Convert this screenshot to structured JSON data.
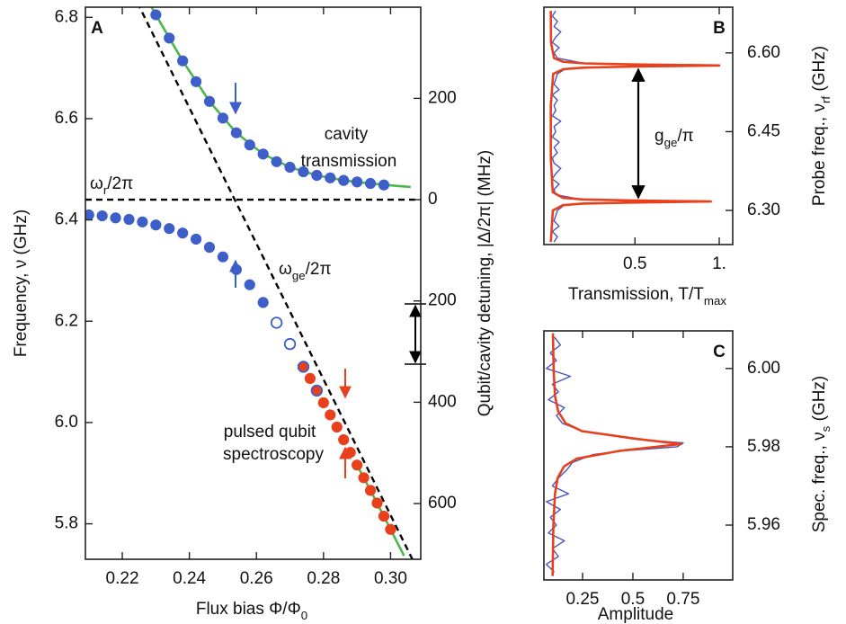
{
  "chart_data": [
    {
      "type": "scatter",
      "label": "A",
      "xlabel": [
        "Flux bias Φ/Φ",
        "0"
      ],
      "ylabel": "Frequency, ν (GHz)",
      "y2label": "Qubit/cavity detuning, |Δ/2π| (MHz)",
      "xlim": [
        0.209,
        0.309
      ],
      "ylim": [
        5.73,
        6.82
      ],
      "y2lim": [
        -710,
        380
      ],
      "xticks": [
        0.22,
        0.24,
        0.26,
        0.28,
        {
          "value": 0.3,
          "label": "0.30"
        }
      ],
      "yticks": [
        6.8,
        6.6,
        6.4,
        6.2,
        {
          "value": 6,
          "label": "6.0"
        },
        5.8
      ],
      "y2ticks": [
        200,
        0,
        {
          "value": -200,
          "label": "200"
        },
        {
          "value": -400,
          "label": "400"
        },
        {
          "value": -600,
          "label": "600"
        }
      ],
      "annotations": [
        {
          "text": "cavity",
          "color": "#3f5fc8"
        },
        {
          "text": "transmission",
          "color": "#3f5fc8"
        },
        {
          "text": [
            "ω",
            "r",
            "/2π"
          ],
          "color": "#111"
        },
        {
          "text": [
            "ω",
            "ge",
            "/2π"
          ],
          "color": "#111"
        },
        {
          "text": "pulsed qubit",
          "color": "#e8401c"
        },
        {
          "text": "spectroscopy",
          "color": "#e8401c"
        }
      ],
      "series": [
        {
          "style": "line",
          "color": "#4cb848",
          "x": [
            0.228,
            0.23,
            0.238,
            0.246,
            0.254,
            0.262,
            0.27,
            0.278,
            0.286,
            0.294,
            0.302,
            0.306
          ],
          "values": [
            6.829,
            6.805,
            6.714,
            6.634,
            6.572,
            6.53,
            6.504,
            6.488,
            6.478,
            6.472,
            6.467,
            6.465
          ]
        },
        {
          "style": "line",
          "color": "#4cb848",
          "x": [
            0.29,
            0.294,
            0.298,
            0.302,
            0.304
          ],
          "values": [
            5.916,
            5.866,
            5.815,
            5.763,
            5.737
          ]
        },
        {
          "style": "dashed",
          "color": "#000000",
          "x": [
            0.209,
            0.309
          ],
          "values": [
            6.44,
            6.44
          ]
        },
        {
          "style": "dashed",
          "color": "#000000",
          "x": [
            0.2245,
            0.3065
          ],
          "values": [
            6.829,
            5.73
          ]
        },
        {
          "style": "dots",
          "color": "#3f5fc8",
          "x": [
            0.23,
            0.234,
            0.238,
            0.242,
            0.246,
            0.25,
            0.254,
            0.258,
            0.262,
            0.266,
            0.27,
            0.274,
            0.278,
            0.282,
            0.286,
            0.29,
            0.294,
            0.298
          ],
          "values": [
            6.805,
            6.759,
            6.714,
            6.673,
            6.634,
            6.601,
            6.572,
            6.548,
            6.53,
            6.515,
            6.504,
            6.495,
            6.488,
            6.483,
            6.478,
            6.475,
            6.472,
            6.469
          ]
        },
        {
          "style": "dots",
          "color": "#3f5fc8",
          "x": [
            0.21,
            0.214,
            0.218,
            0.222,
            0.226,
            0.23,
            0.234,
            0.238,
            0.242,
            0.246,
            0.25,
            0.254,
            0.258,
            0.262
          ],
          "values": [
            6.41,
            6.408,
            6.404,
            6.401,
            6.396,
            6.39,
            6.383,
            6.374,
            6.362,
            6.346,
            6.327,
            6.302,
            6.272,
            6.237
          ]
        },
        {
          "style": "dots",
          "color": "#e8401c",
          "x": [
            0.274,
            0.276,
            0.278,
            0.28,
            0.282,
            0.284,
            0.286,
            0.288,
            0.29,
            0.292,
            0.294,
            0.296,
            0.298,
            0.3
          ],
          "values": [
            6.11,
            6.087,
            6.063,
            6.039,
            6.015,
            5.991,
            5.966,
            5.941,
            5.916,
            5.891,
            5.866,
            5.841,
            5.815,
            5.789
          ]
        },
        {
          "style": "open",
          "color": "#3f5fc8",
          "x": [
            0.266,
            0.27,
            0.274,
            0.278
          ],
          "values": [
            6.197,
            6.155,
            6.11,
            6.063
          ]
        }
      ]
    },
    {
      "type": "line",
      "label": "B",
      "y_axis_position": "right",
      "xlabel": [
        "Transmission, T/T",
        "max"
      ],
      "ylabel": [
        "Probe freq., ν",
        "rf",
        " (GHz)"
      ],
      "xlim": [
        -0.04,
        1.08
      ],
      "ylim": [
        6.235,
        6.687
      ],
      "xticks": [
        0.5,
        {
          "value": 1,
          "label": "1."
        }
      ],
      "yticks": [
        {
          "value": 6.6,
          "label": "6.60"
        },
        6.45,
        {
          "value": 6.3,
          "label": "6.30"
        }
      ],
      "annotations": [
        {
          "text": [
            "g",
            "ge",
            "/π"
          ],
          "color": "#111"
        }
      ],
      "series": [
        {
          "style": "line",
          "color": "#4a55c0",
          "y": [
            6.24,
            6.25,
            6.26,
            6.27,
            6.28,
            6.29,
            6.3,
            6.31,
            6.313,
            6.315,
            6.317,
            6.319,
            6.321,
            6.33,
            6.34,
            6.35,
            6.36,
            6.37,
            6.38,
            6.39,
            6.4,
            6.41,
            6.42,
            6.43,
            6.44,
            6.45,
            6.46,
            6.47,
            6.48,
            6.49,
            6.5,
            6.51,
            6.52,
            6.53,
            6.54,
            6.55,
            6.56,
            6.57,
            6.572,
            6.574,
            6.576,
            6.578,
            6.58,
            6.59,
            6.6,
            6.61,
            6.62,
            6.63,
            6.64,
            6.65,
            6.66,
            6.67,
            6.68
          ],
          "values": [
            0.02,
            0.04,
            0.01,
            0.05,
            0.02,
            0.03,
            0.04,
            0.08,
            0.2,
            0.45,
            0.92,
            0.5,
            0.18,
            0.03,
            0.02,
            0.05,
            0.01,
            0.03,
            0.06,
            0.02,
            0.01,
            0.04,
            0.02,
            0.05,
            0.01,
            0.03,
            0.02,
            0.06,
            0.01,
            0.03,
            0.02,
            0.04,
            0.01,
            0.05,
            0.02,
            0.03,
            0.04,
            0.09,
            0.22,
            0.48,
            0.97,
            0.52,
            0.2,
            0.04,
            0.02,
            0.05,
            0.01,
            0.03,
            0.06,
            0.02,
            0.04,
            0.01,
            0.03
          ]
        },
        {
          "style": "line",
          "color": "#e8401c",
          "y": [
            6.24,
            6.3,
            6.31,
            6.313,
            6.315,
            6.317,
            6.319,
            6.321,
            6.324,
            6.335,
            6.4,
            6.45,
            6.5,
            6.56,
            6.569,
            6.572,
            6.574,
            6.576,
            6.578,
            6.58,
            6.583,
            6.59,
            6.62,
            6.68
          ],
          "values": [
            0.001,
            0.013,
            0.072,
            0.19,
            0.475,
            0.95,
            0.475,
            0.19,
            0.072,
            0.012,
            0.001,
            0.001,
            0.001,
            0.015,
            0.075,
            0.2,
            0.5,
            1.0,
            0.5,
            0.2,
            0.075,
            0.02,
            0.002,
            0.001
          ]
        }
      ]
    },
    {
      "type": "line",
      "label": "C",
      "y_axis_position": "right",
      "xlabel": "Amplitude",
      "ylabel": [
        "Spec. freq., ν",
        "s",
        " (GHz)"
      ],
      "xlim": [
        0.058,
        0.996
      ],
      "ylim": [
        5.946,
        6.0096
      ],
      "xticks": [
        0.25,
        0.5,
        0.75
      ],
      "yticks": [
        {
          "value": 6,
          "label": "6.00"
        },
        5.98,
        5.96
      ],
      "annotations": [],
      "series": [
        {
          "style": "line",
          "color": "#4a55c0",
          "y": [
            5.948,
            5.95,
            5.952,
            5.954,
            5.956,
            5.958,
            5.96,
            5.962,
            5.964,
            5.966,
            5.968,
            5.97,
            5.972,
            5.974,
            5.976,
            5.978,
            5.979,
            5.98,
            5.981,
            5.982,
            5.984,
            5.986,
            5.988,
            5.99,
            5.992,
            5.994,
            5.996,
            5.998,
            6.0,
            6.002,
            6.004,
            6.006,
            6.008
          ],
          "values": [
            0.11,
            0.07,
            0.13,
            0.1,
            0.16,
            0.08,
            0.12,
            0.09,
            0.14,
            0.07,
            0.18,
            0.1,
            0.13,
            0.17,
            0.2,
            0.3,
            0.46,
            0.72,
            0.75,
            0.5,
            0.25,
            0.15,
            0.12,
            0.16,
            0.08,
            0.13,
            0.1,
            0.19,
            0.07,
            0.12,
            0.09,
            0.14,
            0.11
          ]
        },
        {
          "style": "line",
          "color": "#e8401c",
          "y": [
            5.947,
            5.95,
            5.96,
            5.968,
            5.972,
            5.975,
            5.977,
            5.979,
            5.9807,
            5.982,
            5.984,
            5.986,
            5.989,
            5.993,
            6.0,
            6.009
          ],
          "values": [
            0.101,
            0.102,
            0.105,
            0.113,
            0.126,
            0.158,
            0.222,
            0.439,
            0.74,
            0.521,
            0.247,
            0.166,
            0.129,
            0.113,
            0.106,
            0.103
          ]
        }
      ]
    }
  ]
}
